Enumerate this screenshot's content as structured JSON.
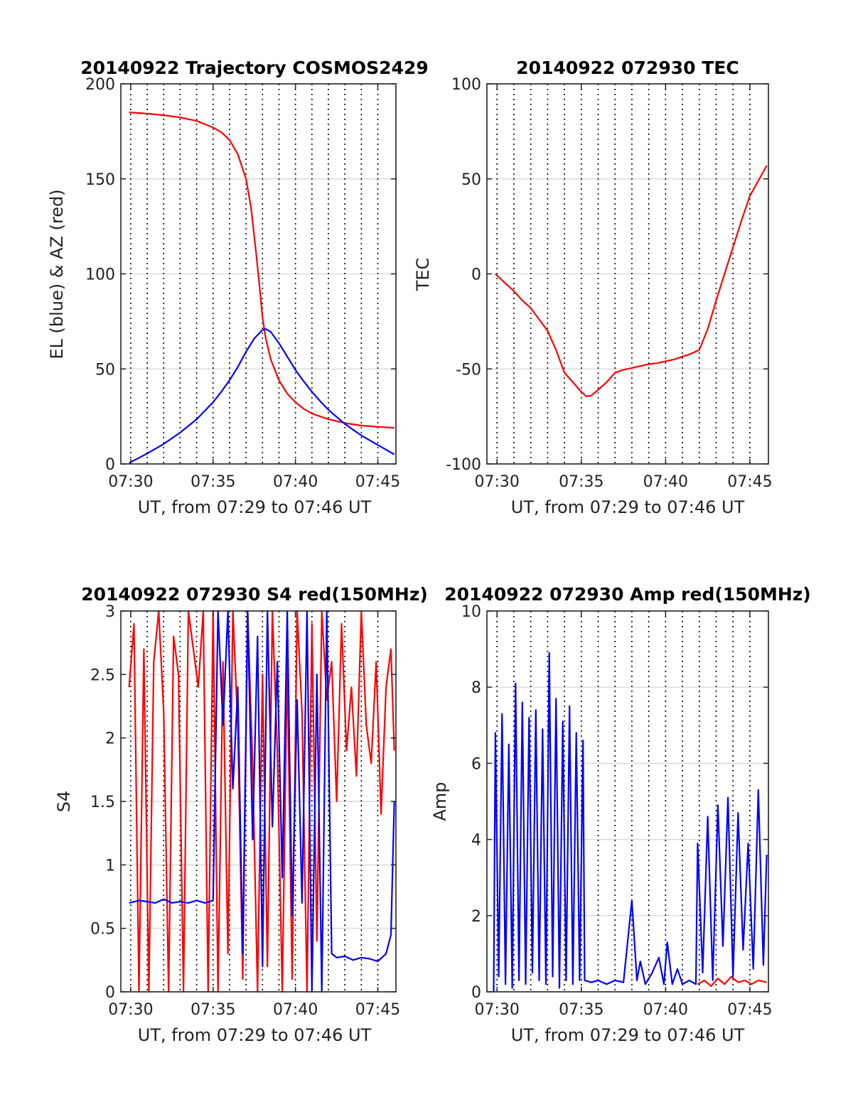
{
  "chart_data": [
    {
      "type": "line",
      "title": "20140922 Trajectory COSMOS2429",
      "xlabel": "UT, from 07:29 to 07:46 UT",
      "ylabel": "EL (blue) & AZ (red)",
      "xlim": [
        29.4,
        46.1
      ],
      "ylim": [
        0,
        200
      ],
      "x_ticks": [
        30,
        35,
        40,
        45
      ],
      "x_tick_labels": [
        "07:30",
        "07:35",
        "07:40",
        "07:45"
      ],
      "y_ticks": [
        0,
        50,
        100,
        150,
        200
      ],
      "y_tick_labels": [
        "0",
        "50",
        "100",
        "150",
        "200"
      ],
      "vertical_grid_minutes": [
        30,
        31,
        32,
        33,
        34,
        35,
        36,
        37,
        38,
        39,
        40,
        41,
        42,
        43,
        44,
        45
      ],
      "series": [
        {
          "color": "#ff0000",
          "x": [
            29.9,
            31,
            32,
            33,
            34,
            35,
            35.5,
            36,
            36.5,
            37,
            37.3,
            37.6,
            37.8,
            38,
            38.2,
            38.5,
            39,
            39.5,
            40,
            40.5,
            41,
            42,
            43,
            44,
            45,
            46
          ],
          "values": [
            185,
            184.3,
            183.5,
            182.3,
            180.5,
            177,
            174.5,
            170.5,
            163,
            150,
            135,
            112,
            95,
            77,
            66,
            55,
            44,
            37,
            32.5,
            29,
            26.5,
            23.5,
            21.5,
            20.2,
            19.5,
            19
          ]
        },
        {
          "color": "#0000ff",
          "x": [
            29.9,
            31,
            32,
            33,
            34,
            35,
            35.5,
            36,
            36.5,
            37,
            37.5,
            38,
            38.2,
            38.5,
            39,
            39.5,
            40,
            40.5,
            41,
            41.5,
            42,
            43,
            44,
            45,
            46
          ],
          "values": [
            0.5,
            5.5,
            10.5,
            16.5,
            23.5,
            32.5,
            38,
            44,
            51,
            59,
            66,
            70.5,
            71,
            69.5,
            63.5,
            56.5,
            49.5,
            43.5,
            38,
            33,
            28.5,
            21,
            15,
            10,
            5
          ]
        }
      ]
    },
    {
      "type": "line",
      "title": "20140922 072930 TEC",
      "xlabel": "UT, from 07:29 to 07:46 UT",
      "ylabel": "TEC",
      "xlim": [
        29.4,
        46.1
      ],
      "ylim": [
        -100,
        100
      ],
      "x_ticks": [
        30,
        35,
        40,
        45
      ],
      "x_tick_labels": [
        "07:30",
        "07:35",
        "07:40",
        "07:45"
      ],
      "y_ticks": [
        -100,
        -50,
        0,
        50,
        100
      ],
      "y_tick_labels": [
        "-100",
        "-50",
        "0",
        "50",
        "100"
      ],
      "vertical_grid_minutes": [
        30,
        31,
        32,
        33,
        34,
        35,
        36,
        37,
        38,
        39,
        40,
        41,
        42,
        43,
        44,
        45
      ],
      "series": [
        {
          "color": "#ff0000",
          "x": [
            29.9,
            30.5,
            31,
            31.5,
            32,
            32.5,
            33,
            33.5,
            34,
            34.5,
            35,
            35.3,
            35.6,
            36,
            36.5,
            37,
            37.5,
            38,
            38.5,
            39,
            39.5,
            40,
            40.5,
            41,
            41.5,
            42,
            42.5,
            43,
            43.5,
            44,
            44.5,
            45,
            45.5,
            46
          ],
          "values": [
            0,
            -5,
            -9,
            -14,
            -18,
            -24,
            -30,
            -40,
            -52,
            -57,
            -62,
            -64.5,
            -64,
            -61,
            -57,
            -52,
            -50.5,
            -49.5,
            -48.5,
            -47.5,
            -47,
            -46,
            -45,
            -43.5,
            -42,
            -40,
            -29,
            -14,
            0,
            14,
            28,
            41,
            49,
            57
          ]
        }
      ]
    },
    {
      "type": "line",
      "title": "20140922 072930 S4 red(150MHz)",
      "xlabel": "UT, from 07:29 to 07:46 UT",
      "ylabel": "S4",
      "xlim": [
        29.4,
        46.1
      ],
      "ylim": [
        0,
        3
      ],
      "x_ticks": [
        30,
        35,
        40,
        45
      ],
      "x_tick_labels": [
        "07:30",
        "07:35",
        "07:40",
        "07:45"
      ],
      "y_ticks": [
        0,
        0.5,
        1,
        1.5,
        2,
        2.5,
        3
      ],
      "y_tick_labels": [
        "0",
        "0.5",
        "1",
        "1.5",
        "2",
        "2.5",
        "3"
      ],
      "vertical_grid_minutes": [
        30,
        31,
        32,
        33,
        34,
        35,
        36,
        37,
        38,
        39,
        40,
        41,
        42,
        43,
        44,
        45
      ],
      "series": [
        {
          "color": "#ff0000",
          "x": [
            29.9,
            30.2,
            30.5,
            30.8,
            31.1,
            31.4,
            31.7,
            32,
            32.3,
            32.6,
            32.9,
            33.2,
            33.5,
            33.8,
            34.1,
            34.4,
            34.7,
            35,
            35.3,
            35.6,
            35.9,
            36.2,
            36.5,
            36.8,
            37.1,
            37.4,
            37.7,
            38,
            38.3,
            38.6,
            38.9,
            39.2,
            39.5,
            39.8,
            40.1,
            40.4,
            40.7,
            41,
            41.3,
            41.6,
            41.9,
            42.2,
            42.5,
            42.8,
            43.1,
            43.4,
            43.7,
            44,
            44.3,
            44.6,
            44.9,
            45.2,
            45.5,
            45.8,
            46
          ],
          "values": [
            2.4,
            2.9,
            0,
            2.7,
            0,
            2.6,
            3,
            2.2,
            0,
            2.8,
            2.5,
            0,
            3,
            2.7,
            2.4,
            3,
            0,
            3,
            0,
            2.6,
            0.3,
            3,
            2.1,
            0.1,
            3,
            1.8,
            0,
            2.5,
            0.2,
            3,
            1.9,
            0,
            2.6,
            0.1,
            3,
            2.2,
            0,
            2.9,
            0.4,
            3,
            2.3,
            2.6,
            1.5,
            2.9,
            1.9,
            2.4,
            1.7,
            3,
            2.1,
            1.8,
            2.6,
            1.4,
            2.4,
            2.7,
            1.9
          ]
        },
        {
          "color": "#0000ff",
          "x": [
            29.9,
            30.5,
            31,
            31.5,
            32,
            32.5,
            33,
            33.5,
            34,
            34.5,
            35,
            35.3,
            35.6,
            35.9,
            36.2,
            36.5,
            36.8,
            37.1,
            37.4,
            37.7,
            38,
            38.3,
            38.6,
            38.9,
            39.2,
            39.5,
            39.8,
            40.1,
            40.4,
            40.7,
            41,
            41.3,
            41.6,
            41.9,
            42.2,
            42.5,
            43,
            43.5,
            44,
            44.5,
            45,
            45.5,
            45.8,
            46
          ],
          "values": [
            0.7,
            0.72,
            0.71,
            0.7,
            0.73,
            0.7,
            0.71,
            0.7,
            0.72,
            0.7,
            0.72,
            3,
            2.1,
            3,
            1.6,
            2.4,
            0.3,
            3,
            1.2,
            2.8,
            0.2,
            3,
            1.3,
            2.6,
            0.9,
            3,
            0.6,
            2.3,
            0.7,
            3,
            0,
            2.5,
            0,
            3,
            0.3,
            0.27,
            0.28,
            0.25,
            0.27,
            0.26,
            0.24,
            0.3,
            0.45,
            1.5
          ]
        }
      ]
    },
    {
      "type": "line",
      "title": "20140922 072930 Amp red(150MHz)",
      "xlabel": "UT, from 07:29 to 07:46 UT",
      "ylabel": "Amp",
      "xlim": [
        29.4,
        46.1
      ],
      "ylim": [
        0,
        10
      ],
      "x_ticks": [
        30,
        35,
        40,
        45
      ],
      "x_tick_labels": [
        "07:30",
        "07:35",
        "07:40",
        "07:45"
      ],
      "y_ticks": [
        0,
        2,
        4,
        6,
        8,
        10
      ],
      "y_tick_labels": [
        "0",
        "2",
        "4",
        "6",
        "8",
        "10"
      ],
      "vertical_grid_minutes": [
        30,
        31,
        32,
        33,
        34,
        35,
        36,
        37,
        38,
        39,
        40,
        41,
        42,
        43,
        44,
        45
      ],
      "series": [
        {
          "color": "#ff0000",
          "x": [
            41.9,
            42.3,
            42.7,
            43.1,
            43.5,
            43.9,
            44.3,
            44.7,
            45.1,
            45.5,
            46
          ],
          "values": [
            0.2,
            0.3,
            0.15,
            0.35,
            0.2,
            0.4,
            0.25,
            0.3,
            0.2,
            0.3,
            0.25
          ]
        },
        {
          "color": "#0000ff",
          "x": [
            29.8,
            29.9,
            30.1,
            30.3,
            30.5,
            30.7,
            30.9,
            31.1,
            31.3,
            31.5,
            31.7,
            31.9,
            32.1,
            32.3,
            32.5,
            32.7,
            32.9,
            33.1,
            33.3,
            33.5,
            33.7,
            33.9,
            34.1,
            34.3,
            34.5,
            34.7,
            34.9,
            35.1,
            35.2,
            35.6,
            36,
            36.5,
            37,
            37.5,
            38,
            38.3,
            38.5,
            38.8,
            39.2,
            39.6,
            39.9,
            40.1,
            40.4,
            40.7,
            41,
            41.4,
            41.8,
            41.9,
            42.2,
            42.5,
            42.8,
            43.1,
            43.4,
            43.7,
            44,
            44.3,
            44.6,
            44.9,
            45.2,
            45.5,
            45.8,
            46
          ],
          "values": [
            0,
            6.8,
            0.4,
            7.3,
            0.2,
            6.5,
            0.1,
            8.1,
            0.3,
            7.6,
            0.2,
            7.2,
            0.5,
            7.4,
            0.3,
            6.9,
            0.2,
            8.9,
            0.4,
            7.7,
            0.1,
            7.1,
            0.3,
            7.5,
            0.2,
            6.8,
            0.3,
            6.6,
            0.3,
            0.25,
            0.3,
            0.2,
            0.3,
            0.25,
            2.4,
            0.3,
            0.8,
            0.2,
            0.5,
            0.9,
            0.2,
            1.3,
            0.2,
            0.6,
            0.2,
            0.3,
            0.2,
            3.9,
            0.5,
            4.6,
            0.3,
            4.9,
            1.2,
            5.1,
            0.4,
            4.7,
            1.1,
            3.9,
            0.6,
            5.3,
            0.7,
            3.6
          ]
        }
      ]
    }
  ]
}
